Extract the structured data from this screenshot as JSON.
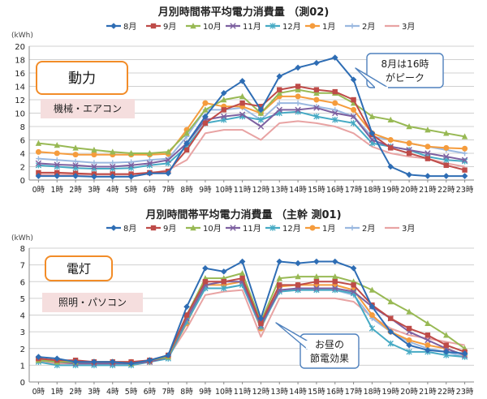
{
  "chart_data": [
    {
      "type": "line",
      "title": "月別時間帯平均電力消費量 （測02)",
      "ylabel": "(kWh)",
      "ylim": [
        0,
        20
      ],
      "yticks": [
        0,
        2,
        4,
        6,
        8,
        10,
        12,
        14,
        16,
        18,
        20
      ],
      "grid": true,
      "legend": "top",
      "categories": [
        "0時",
        "1時",
        "2時",
        "3時",
        "4時",
        "5時",
        "6時",
        "7時",
        "8時",
        "9時",
        "10時",
        "11時",
        "12時",
        "13時",
        "14時",
        "15時",
        "16時",
        "17時",
        "18時",
        "19時",
        "20時",
        "21時",
        "22時",
        "23時"
      ],
      "series": [
        {
          "name": "8月",
          "color": "#2e6db4",
          "marker": "diamond",
          "values": [
            0.6,
            0.6,
            0.6,
            0.5,
            0.5,
            0.5,
            1.0,
            1.0,
            5.5,
            9.5,
            13.0,
            14.8,
            10.5,
            15.5,
            16.8,
            17.5,
            18.3,
            15.0,
            7.0,
            2.0,
            0.8,
            0.6,
            0.6,
            0.6
          ]
        },
        {
          "name": "9月",
          "color": "#be4b48",
          "marker": "square",
          "values": [
            1.1,
            1.1,
            1.0,
            0.9,
            0.9,
            0.9,
            1.1,
            1.3,
            4.5,
            8.5,
            10.5,
            11.5,
            11.0,
            13.5,
            14.0,
            13.5,
            13.2,
            12.0,
            6.8,
            4.8,
            4.0,
            3.2,
            2.2,
            1.5
          ]
        },
        {
          "name": "10月",
          "color": "#98b954",
          "marker": "triangle",
          "values": [
            5.5,
            5.2,
            4.8,
            4.5,
            4.2,
            4.0,
            4.0,
            4.2,
            7.0,
            10.5,
            12.0,
            12.5,
            10.0,
            13.0,
            13.5,
            13.0,
            13.0,
            11.5,
            9.5,
            9.0,
            8.0,
            7.5,
            7.0,
            6.5
          ]
        },
        {
          "name": "11月",
          "color": "#7d60a0",
          "marker": "x",
          "values": [
            2.5,
            2.3,
            2.2,
            2.0,
            2.0,
            2.2,
            2.5,
            3.0,
            5.5,
            9.0,
            9.5,
            9.8,
            8.0,
            10.5,
            10.5,
            10.8,
            10.0,
            9.5,
            6.0,
            5.0,
            4.5,
            4.0,
            3.5,
            3.0
          ]
        },
        {
          "name": "12月",
          "color": "#46aac4",
          "marker": "asterisk",
          "values": [
            2.2,
            2.0,
            1.8,
            1.7,
            1.7,
            1.8,
            2.2,
            2.5,
            5.0,
            8.5,
            9.0,
            9.5,
            9.0,
            10.0,
            10.2,
            9.5,
            9.0,
            8.5,
            5.5,
            5.0,
            4.5,
            3.5,
            3.0,
            2.8
          ]
        },
        {
          "name": "1月",
          "color": "#f59c3d",
          "marker": "circle",
          "values": [
            4.2,
            4.0,
            3.8,
            3.8,
            3.8,
            3.8,
            3.8,
            3.9,
            7.5,
            11.5,
            11.0,
            11.0,
            10.0,
            12.5,
            12.5,
            12.0,
            11.5,
            10.5,
            7.0,
            6.0,
            5.5,
            5.0,
            4.8,
            4.7
          ]
        },
        {
          "name": "2月",
          "color": "#9ab8e0",
          "marker": "plus",
          "values": [
            3.2,
            3.0,
            2.8,
            2.6,
            2.6,
            2.7,
            3.0,
            3.2,
            6.5,
            10.5,
            10.5,
            10.8,
            9.0,
            11.5,
            11.5,
            11.0,
            10.5,
            9.5,
            6.5,
            6.0,
            5.5,
            5.0,
            4.5,
            4.0
          ]
        },
        {
          "name": "3月",
          "color": "#e8a3a3",
          "marker": "none",
          "values": [
            0.8,
            0.8,
            0.8,
            0.8,
            0.8,
            0.8,
            1.0,
            1.5,
            3.0,
            7.0,
            7.5,
            7.5,
            6.0,
            8.5,
            8.8,
            8.5,
            8.0,
            7.0,
            5.0,
            4.0,
            3.5,
            3.2,
            2.5,
            2.0
          ]
        }
      ],
      "annotations": {
        "label": "動力",
        "sublabel": "機械・エアコン",
        "callout": "8月は16時\nがピーク"
      }
    },
    {
      "type": "line",
      "title": "月別時間帯平均電力消費量 （主幹 測01)",
      "ylabel": "(kWh)",
      "ylim": [
        0,
        8
      ],
      "yticks": [
        0,
        1,
        2,
        3,
        4,
        5,
        6,
        7,
        8
      ],
      "grid": true,
      "legend": "top",
      "categories": [
        "0時",
        "1時",
        "2時",
        "3時",
        "4時",
        "5時",
        "6時",
        "7時",
        "8時",
        "9時",
        "10時",
        "11時",
        "12時",
        "13時",
        "14時",
        "15時",
        "16時",
        "17時",
        "18時",
        "19時",
        "20時",
        "21時",
        "22時",
        "23時"
      ],
      "series": [
        {
          "name": "8月",
          "color": "#2e6db4",
          "marker": "diamond",
          "values": [
            1.5,
            1.4,
            1.2,
            1.2,
            1.2,
            1.1,
            1.3,
            1.6,
            4.5,
            6.8,
            6.6,
            7.2,
            3.8,
            7.2,
            7.1,
            7.2,
            7.2,
            6.8,
            4.5,
            3.0,
            2.2,
            1.9,
            1.8,
            1.7
          ]
        },
        {
          "name": "9月",
          "color": "#be4b48",
          "marker": "square",
          "values": [
            1.4,
            1.3,
            1.3,
            1.2,
            1.2,
            1.2,
            1.3,
            1.6,
            4.0,
            6.0,
            6.0,
            6.2,
            3.5,
            5.8,
            5.8,
            6.0,
            6.0,
            5.8,
            4.6,
            3.8,
            3.2,
            2.8,
            2.2,
            1.8
          ]
        },
        {
          "name": "10月",
          "color": "#98b954",
          "marker": "triangle",
          "values": [
            1.3,
            1.2,
            1.2,
            1.2,
            1.2,
            1.1,
            1.3,
            1.5,
            4.0,
            6.2,
            6.2,
            6.5,
            3.6,
            6.2,
            6.3,
            6.3,
            6.3,
            6.0,
            5.5,
            4.8,
            4.2,
            3.5,
            2.8,
            2.0
          ]
        },
        {
          "name": "11月",
          "color": "#7d60a0",
          "marker": "x",
          "values": [
            1.3,
            1.2,
            1.1,
            1.1,
            1.1,
            1.1,
            1.2,
            1.5,
            3.8,
            5.8,
            6.0,
            6.0,
            3.4,
            5.5,
            5.6,
            5.6,
            5.6,
            5.4,
            4.5,
            3.8,
            3.0,
            2.5,
            2.0,
            1.6
          ]
        },
        {
          "name": "12月",
          "color": "#46aac4",
          "marker": "asterisk",
          "values": [
            1.2,
            1.0,
            1.0,
            1.0,
            1.0,
            1.0,
            1.2,
            1.4,
            3.6,
            5.6,
            5.6,
            5.8,
            3.3,
            5.4,
            5.5,
            5.5,
            5.5,
            5.3,
            3.2,
            2.3,
            1.8,
            1.8,
            1.6,
            1.5
          ]
        },
        {
          "name": "1月",
          "color": "#f59c3d",
          "marker": "circle",
          "values": [
            1.3,
            1.3,
            1.2,
            1.2,
            1.2,
            1.2,
            1.2,
            1.5,
            3.5,
            5.8,
            5.8,
            6.0,
            3.2,
            5.7,
            5.8,
            5.8,
            5.8,
            5.5,
            4.0,
            3.0,
            2.5,
            2.2,
            2.0,
            1.6
          ]
        },
        {
          "name": "2月",
          "color": "#9ab8e0",
          "marker": "plus",
          "values": [
            1.3,
            1.2,
            1.2,
            1.1,
            1.1,
            1.1,
            1.2,
            1.5,
            3.6,
            5.6,
            5.6,
            5.8,
            3.2,
            5.5,
            5.5,
            5.5,
            5.5,
            5.2,
            3.8,
            3.0,
            2.4,
            2.0,
            1.8,
            1.5
          ]
        },
        {
          "name": "3月",
          "color": "#e8a3a3",
          "marker": "none",
          "values": [
            1.2,
            1.1,
            1.1,
            1.1,
            1.0,
            1.0,
            1.2,
            1.5,
            3.2,
            5.2,
            5.4,
            5.5,
            2.7,
            5.0,
            5.0,
            5.0,
            5.0,
            4.8,
            3.9,
            3.2,
            2.8,
            2.6,
            2.4,
            2.2
          ]
        }
      ],
      "annotations": {
        "label": "電灯",
        "sublabel": "照明・パソコン",
        "callout": "お昼の\n節電効果"
      }
    }
  ]
}
